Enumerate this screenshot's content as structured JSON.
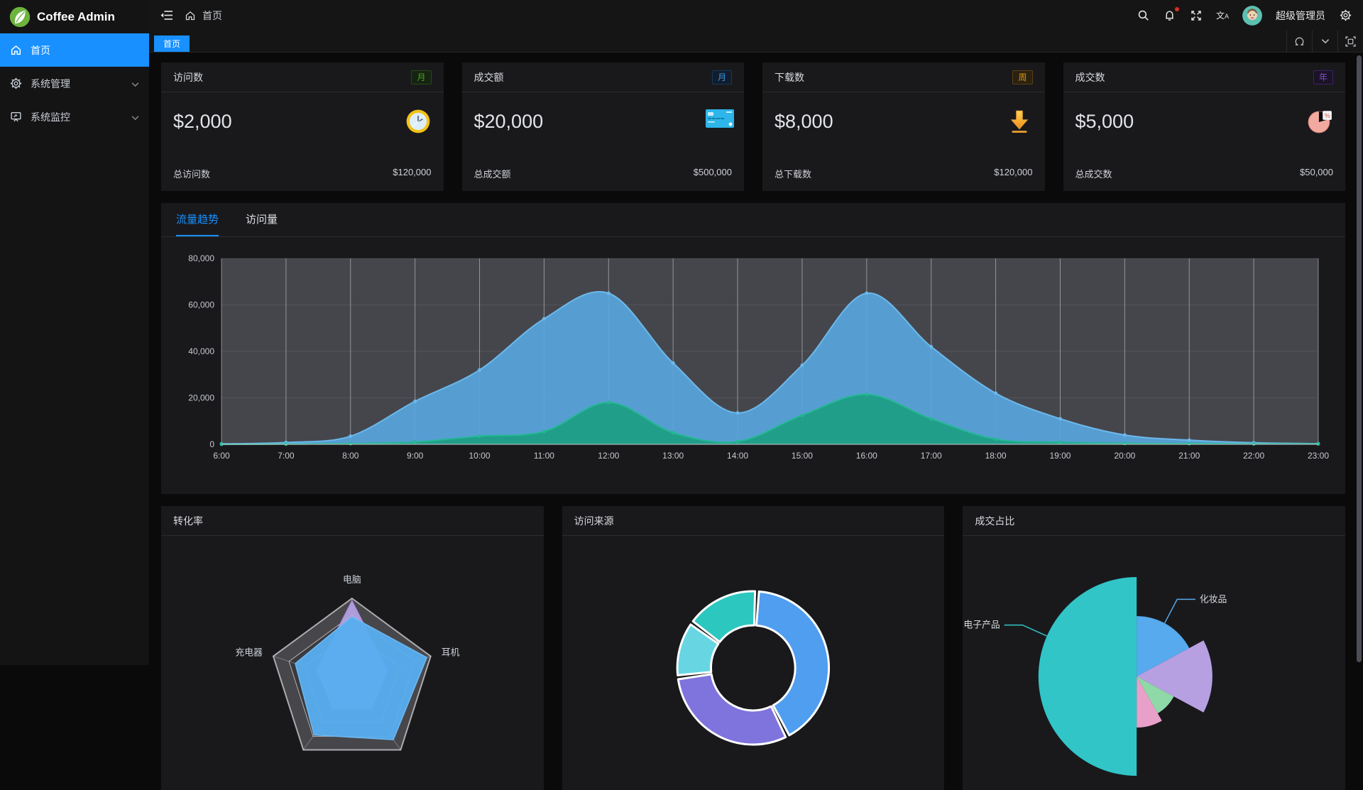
{
  "brand": {
    "name": "Coffee Admin"
  },
  "sidebar": {
    "items": [
      {
        "label": "首页",
        "icon": "home-icon",
        "active": true
      },
      {
        "label": "系统管理",
        "icon": "gear-icon",
        "active": false
      },
      {
        "label": "系统监控",
        "icon": "monitor-icon",
        "active": false
      }
    ]
  },
  "topbar": {
    "breadcrumb": "首页",
    "user": "超级管理员"
  },
  "tabs": {
    "items": [
      {
        "label": "首页",
        "active": true
      }
    ]
  },
  "stat_cards": [
    {
      "title": "访问数",
      "badge": "月",
      "badge_color": "green",
      "value": "$2,000",
      "icon": "clock-icon",
      "footer_label": "总访问数",
      "footer_value": "$120,000"
    },
    {
      "title": "成交额",
      "badge": "月",
      "badge_color": "blue",
      "value": "$20,000",
      "icon": "bankcard-icon",
      "footer_label": "总成交额",
      "footer_value": "$500,000"
    },
    {
      "title": "下载数",
      "badge": "周",
      "badge_color": "orange",
      "value": "$8,000",
      "icon": "download-icon",
      "footer_label": "总下载数",
      "footer_value": "$120,000"
    },
    {
      "title": "成交数",
      "badge": "年",
      "badge_color": "purple",
      "value": "$5,000",
      "icon": "pie-icon",
      "footer_label": "总成交数",
      "footer_value": "$50,000"
    }
  ],
  "trend_card": {
    "tabs": [
      "流量趋势",
      "访问量"
    ],
    "active_tab": "流量趋势"
  },
  "bottom_cards": [
    {
      "title": "转化率"
    },
    {
      "title": "访问来源"
    },
    {
      "title": "成交占比"
    }
  ],
  "colors": {
    "accent": "#1890ff",
    "card_bg": "#19191c",
    "plot_bg": "#45464b",
    "trend_blue": "#6cb8ec",
    "trend_green": "#23b893"
  },
  "chart_data": [
    {
      "id": "trend",
      "type": "area",
      "title": "流量趋势",
      "x": [
        "6:00",
        "7:00",
        "8:00",
        "9:00",
        "10:00",
        "11:00",
        "12:00",
        "13:00",
        "14:00",
        "15:00",
        "16:00",
        "17:00",
        "18:00",
        "19:00",
        "20:00",
        "21:00",
        "22:00",
        "23:00"
      ],
      "ylim": [
        0,
        80000
      ],
      "yticks": [
        0,
        20000,
        40000,
        60000,
        80000
      ],
      "ytick_labels": [
        "0",
        "20,000",
        "40,000",
        "60,000",
        "80,000"
      ],
      "grid": true,
      "plot_bg": "#45464b",
      "series": [
        {
          "color": "#6cb8ec",
          "fill": "#58a6dd",
          "fill_opacity": 0.92,
          "values": [
            200,
            800,
            3500,
            18500,
            32000,
            54000,
            65000,
            35000,
            13500,
            34000,
            65000,
            42000,
            22000,
            11000,
            4000,
            1800,
            700,
            300
          ]
        },
        {
          "color": "#23b893",
          "fill": "#1f9e85",
          "fill_opacity": 0.95,
          "values": [
            0,
            100,
            300,
            1000,
            3500,
            5500,
            18000,
            5000,
            1200,
            12500,
            21500,
            11000,
            2200,
            900,
            400,
            300,
            200,
            200
          ]
        }
      ]
    },
    {
      "id": "conversion",
      "type": "radar",
      "title": "转化率",
      "indicators": [
        "电脑",
        "耳机",
        "",
        "",
        "充电器"
      ],
      "max": 100,
      "series": [
        {
          "color": "#b9a5e8",
          "stroke": "#a98fe0",
          "opacity": 0.9,
          "values": [
            97,
            45,
            40,
            38,
            45
          ]
        },
        {
          "color": "#57aef0",
          "stroke": "#6db9f2",
          "opacity": 0.95,
          "values": [
            78,
            95,
            85,
            78,
            72
          ]
        }
      ]
    },
    {
      "id": "visit-source",
      "type": "donut",
      "title": "访问来源",
      "inner_radius": 60,
      "outer_radius": 108,
      "start_deg": 3,
      "border_color": "#ffffff",
      "segments": [
        {
          "color": "#4f9ef0",
          "deg": 150
        },
        {
          "color": "#7f74dd",
          "deg": 110
        },
        {
          "color": "#67d6e2",
          "deg": 43
        },
        {
          "color": "#2cc7bf",
          "deg": 57
        }
      ]
    },
    {
      "id": "deal-share",
      "type": "rose",
      "title": "成交占比",
      "slices": [
        {
          "name": "化妆品",
          "deg": 62,
          "radius": 85,
          "color": "#57aaee",
          "label_angle_deg": 28
        },
        {
          "name": "",
          "deg": 56,
          "radius": 108,
          "color": "#b7a0e2"
        },
        {
          "name": "",
          "deg": 32,
          "radius": 60,
          "color": "#8fd8a8"
        },
        {
          "name": "",
          "deg": 30,
          "radius": 72,
          "color": "#e8a0c8"
        },
        {
          "name": "电子产品",
          "deg": 180,
          "radius": 140,
          "color": "#31c5c7",
          "label_angle_deg": 294
        }
      ]
    }
  ]
}
